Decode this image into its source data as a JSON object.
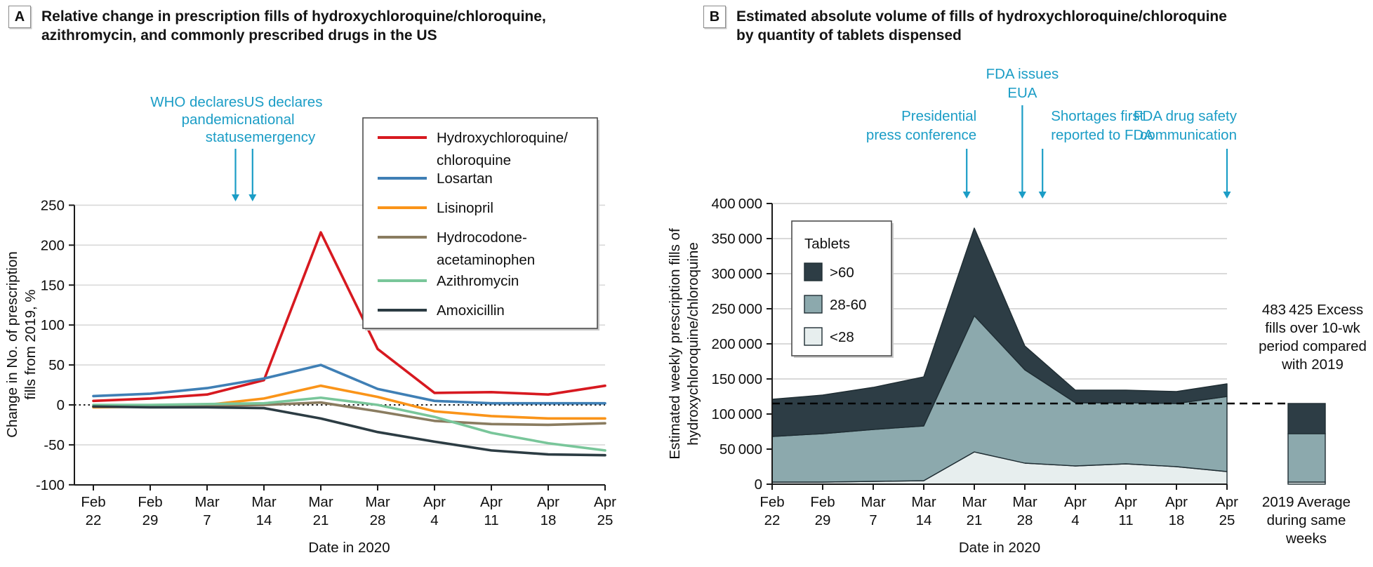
{
  "figure": {
    "background": "#ffffff",
    "annotation_color": "#1b9dc6",
    "grid_color": "#d9d9d9",
    "axis_color": "#1a1a1a",
    "panels": [
      {
        "label": "A",
        "title_lines": [
          "Relative change in prescription fills of hydroxychloroquine/chloroquine,",
          "azithromycin, and commonly prescribed drugs in the US"
        ]
      },
      {
        "label": "B",
        "title_lines": [
          "Estimated absolute volume of fills of hydroxychloroquine/chloroquine",
          "by quantity of tablets dispensed"
        ]
      }
    ]
  },
  "chart_data": [
    {
      "id": "A",
      "type": "line",
      "title": "Relative change in prescription fills of hydroxychloroquine/chloroquine, azithromycin, and commonly prescribed drugs in the US",
      "xlabel": "Date in 2020",
      "ylabel_lines": [
        "Change in No. of prescription",
        "fills from 2019, %"
      ],
      "ylim": [
        -100,
        250
      ],
      "ytick_values": [
        250,
        200,
        150,
        100,
        50,
        0,
        -50,
        -100
      ],
      "ytick_labels": [
        "250",
        "200",
        "150",
        "100",
        "50",
        "0",
        "-50",
        "-100"
      ],
      "grid": true,
      "zero_line": "dotted",
      "legend_position": "top-right",
      "categories": [
        [
          "Feb",
          "22"
        ],
        [
          "Feb",
          "29"
        ],
        [
          "Mar",
          "7"
        ],
        [
          "Mar",
          "14"
        ],
        [
          "Mar",
          "21"
        ],
        [
          "Mar",
          "28"
        ],
        [
          "Apr",
          "4"
        ],
        [
          "Apr",
          "11"
        ],
        [
          "Apr",
          "18"
        ],
        [
          "Apr",
          "25"
        ]
      ],
      "series": [
        {
          "name": "Hydroxychloroquine/chloroquine",
          "legend_lines": [
            "Hydroxychloroquine/",
            "chloroquine"
          ],
          "color": "#d71920",
          "values": [
            5,
            8,
            13,
            31,
            216,
            70,
            15,
            16,
            13,
            24
          ]
        },
        {
          "name": "Losartan",
          "legend_lines": [
            "Losartan"
          ],
          "color": "#3f7fb5",
          "values": [
            11,
            14,
            21,
            33,
            50,
            20,
            5,
            2,
            2,
            2
          ]
        },
        {
          "name": "Lisinopril",
          "legend_lines": [
            "Lisinopril"
          ],
          "color": "#fa9419",
          "values": [
            -3,
            -2,
            0,
            8,
            24,
            10,
            -8,
            -14,
            -17,
            -17
          ]
        },
        {
          "name": "Hydrocodone-acetaminophen",
          "legend_lines": [
            "Hydrocodone-",
            "acetaminophen"
          ],
          "color": "#8a7c60",
          "values": [
            -2,
            -2,
            -1,
            0,
            3,
            -8,
            -20,
            -24,
            -25,
            -23
          ]
        },
        {
          "name": "Azithromycin",
          "legend_lines": [
            "Azithromycin"
          ],
          "color": "#79c69a",
          "values": [
            0,
            0,
            1,
            2,
            9,
            0,
            -15,
            -35,
            -48,
            -57
          ]
        },
        {
          "name": "Amoxicillin",
          "legend_lines": [
            "Amoxicillin"
          ],
          "color": "#2c3c43",
          "values": [
            -2,
            -3,
            -3,
            -4,
            -17,
            -34,
            -46,
            -57,
            -62,
            -63
          ]
        }
      ],
      "annotations": [
        {
          "lines": [
            "WHO declares",
            "pandemic",
            "status"
          ],
          "x_index": 2.5,
          "align": "right",
          "level": "low"
        },
        {
          "lines": [
            "US declares",
            "national",
            "emergency"
          ],
          "x_index": 2.8,
          "align": "left",
          "level": "low"
        }
      ]
    },
    {
      "id": "B",
      "type": "area",
      "title": "Estimated absolute volume of fills of hydroxychloroquine/chloroquine by quantity of tablets dispensed",
      "xlabel": "Date in 2020",
      "ylabel_lines": [
        "Estimated weekly prescription fills of",
        "hydroxychloroquine/chloroquine"
      ],
      "ylim": [
        0,
        400000
      ],
      "ytick_values": [
        400000,
        350000,
        300000,
        250000,
        200000,
        150000,
        100000,
        50000,
        0
      ],
      "ytick_labels": [
        "400 000",
        "350 000",
        "300 000",
        "250 000",
        "200 000",
        "150 000",
        "100 000",
        "50 000",
        "0"
      ],
      "grid": true,
      "legend_title": "Tablets",
      "legend_order": [
        ">60",
        "28-60",
        "<28"
      ],
      "categories": [
        [
          "Feb",
          "22"
        ],
        [
          "Feb",
          "29"
        ],
        [
          "Mar",
          "7"
        ],
        [
          "Mar",
          "14"
        ],
        [
          "Mar",
          "21"
        ],
        [
          "Mar",
          "28"
        ],
        [
          "Apr",
          "4"
        ],
        [
          "Apr",
          "11"
        ],
        [
          "Apr",
          "18"
        ],
        [
          "Apr",
          "25"
        ]
      ],
      "series": [
        {
          "name": "<28",
          "color": "#e7eeee",
          "values": [
            3000,
            3000,
            4000,
            5000,
            46000,
            30000,
            26000,
            29000,
            25000,
            18000
          ]
        },
        {
          "name": "28-60",
          "color": "#8ca9ad",
          "values": [
            65000,
            69000,
            74000,
            78000,
            194000,
            133000,
            90000,
            87000,
            90000,
            107000
          ]
        },
        {
          "name": ">60",
          "color": "#2d3d45",
          "values": [
            53000,
            55000,
            60000,
            70000,
            125000,
            34000,
            18000,
            18000,
            17000,
            18000
          ]
        }
      ],
      "baseline_value": 115000,
      "baseline_style": "dashed",
      "annotations": [
        {
          "lines": [
            "Presidential",
            "press conference"
          ],
          "x_index": 3.85,
          "align": "right",
          "level": "low"
        },
        {
          "lines": [
            "FDA issues",
            "EUA"
          ],
          "x_index": 4.95,
          "align": "center",
          "level": "high"
        },
        {
          "lines": [
            "Shortages first",
            "reported to FDA"
          ],
          "x_index": 5.35,
          "align": "left",
          "level": "low"
        },
        {
          "lines": [
            "FDA drug safety",
            "communication"
          ],
          "x_index": 9.0,
          "align": "right",
          "level": "low"
        }
      ],
      "side_text_lines": [
        "483 425 Excess",
        "fills over 10-wk",
        "period compared",
        "with 2019"
      ],
      "side_bar": {
        "label_lines": [
          "2019 Average",
          "during same",
          "weeks"
        ],
        "segments": [
          {
            "name": "<28",
            "value": 3000
          },
          {
            "name": "28-60",
            "value": 69000
          },
          {
            "name": ">60",
            "value": 43000
          }
        ]
      }
    }
  ]
}
